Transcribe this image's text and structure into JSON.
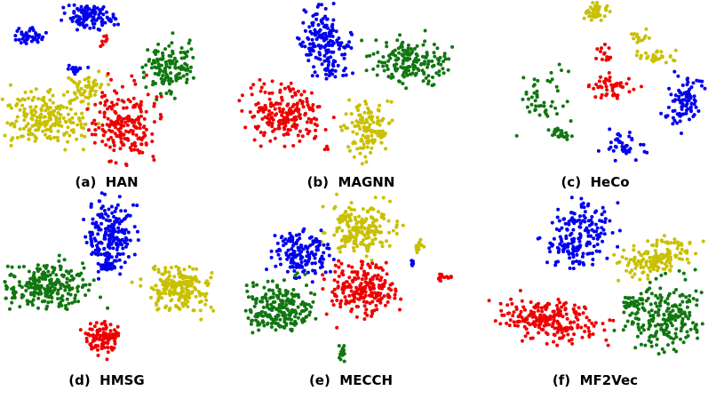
{
  "figure": {
    "captions": [
      "(a)  HAN",
      "(b)  MAGNN",
      "(c)  HeCo",
      "(d)  HMSG",
      "(e)  MECCH",
      "(f)  MF2Vec"
    ]
  }
}
